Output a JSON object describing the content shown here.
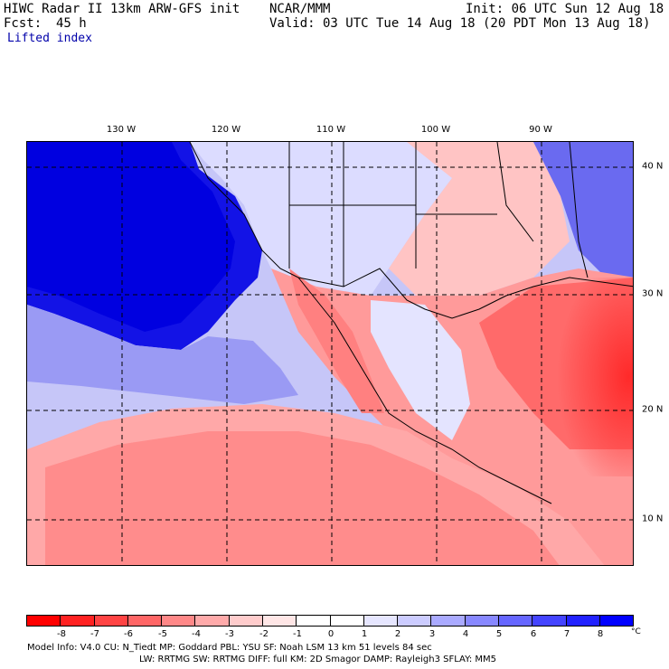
{
  "header": {
    "model_line": "HIWC Radar II 13km ARW-GFS init",
    "fcst_label": "Fcst:",
    "fcst_value": "45 h",
    "org": "NCAR/MMM",
    "init": "Init: 06 UTC Sun 12 Aug 18",
    "valid": "Valid: 03 UTC Tue 14 Aug 18 (20 PDT Mon 13 Aug 18)"
  },
  "field_name": "Lifted index",
  "map": {
    "lon_labels": [
      "130 W",
      "120 W",
      "110 W",
      "100 W",
      "90 W"
    ],
    "lat_labels": [
      "40 N",
      "30 N",
      "20 N",
      "10 N"
    ]
  },
  "colorbar": {
    "colors": [
      "#ff0000",
      "#ff2222",
      "#ff4444",
      "#ff6666",
      "#ff8888",
      "#ffaaaa",
      "#ffcccc",
      "#ffe6e6",
      "#ffffff",
      "#ffffff",
      "#e6e6ff",
      "#ccccff",
      "#aaaaff",
      "#8888ff",
      "#6666ff",
      "#4444ff",
      "#2222ff",
      "#0000ff"
    ],
    "tick_labels": [
      "-8",
      "-7",
      "-6",
      "-5",
      "-4",
      "-3",
      "-2",
      "-1",
      "0",
      "1",
      "2",
      "3",
      "4",
      "5",
      "6",
      "7",
      "8"
    ],
    "unit": "°C"
  },
  "info": {
    "line1": "Model Info: V4.0     CU: N_Tiedt  MP: Goddard     PBL: YSU     SF: Noah LSM     13 km    51 levels    84 sec",
    "line2": "LW: RRTMG     SW: RRTMG   DIFF: full   KM: 2D Smagor DAMP: Rayleigh3   SFLAY: MM5"
  }
}
